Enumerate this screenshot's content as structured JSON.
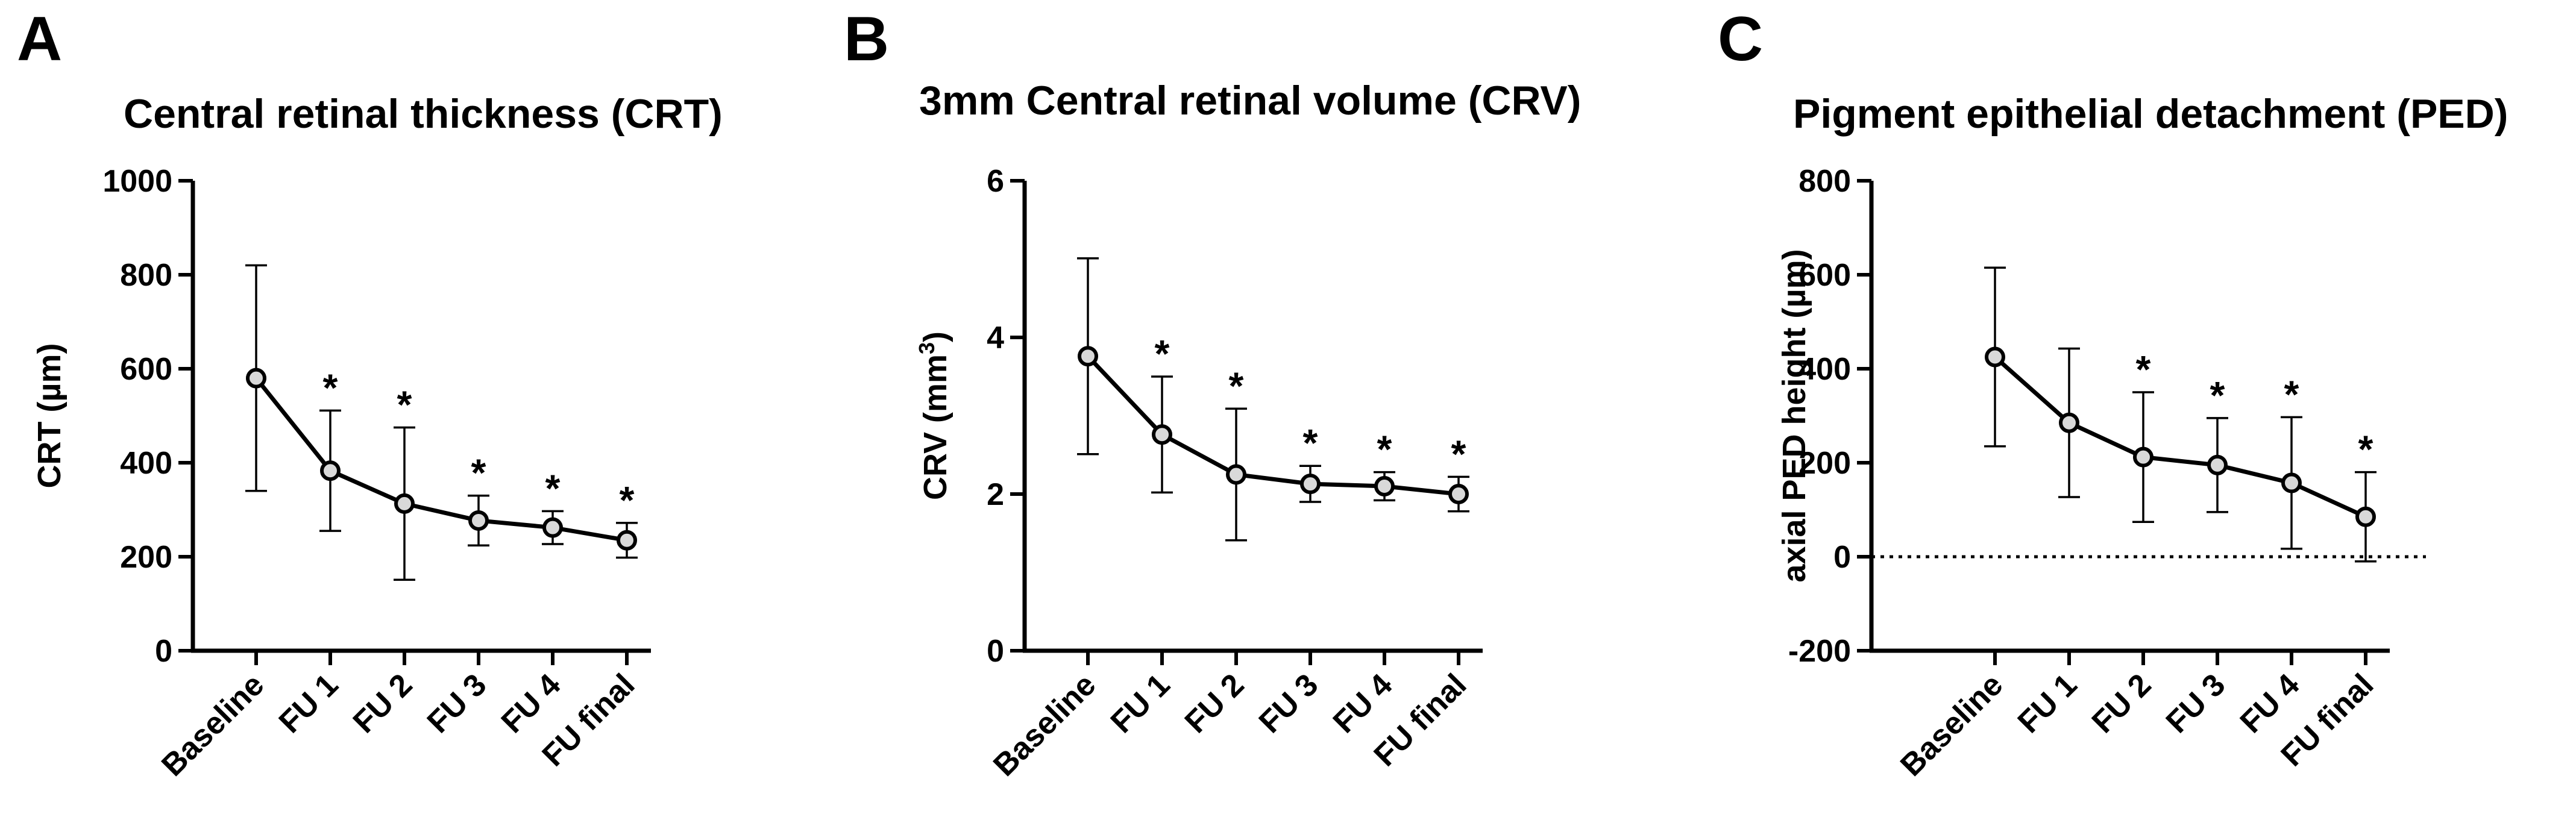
{
  "chart_data": [
    {
      "type": "line",
      "panel_label": "A",
      "title": "Central retinal thickness (CRT)",
      "ylabel_html_parts": [
        "CRT (µm)"
      ],
      "ylabel": "CRT (µm)",
      "ylim": [
        0,
        1000
      ],
      "yticks": [
        0,
        200,
        400,
        600,
        800,
        1000
      ],
      "grid": false,
      "categories": [
        "Baseline",
        "FU 1",
        "FU 2",
        "FU 3",
        "FU 4",
        "FU final"
      ],
      "values": [
        580,
        383,
        313,
        277,
        262,
        235
      ],
      "error_bars": [
        240,
        128,
        162,
        53,
        35,
        37
      ],
      "significance": [
        "",
        "*",
        "*",
        "*",
        "*",
        "*"
      ],
      "zero_reference_line": false
    },
    {
      "type": "line",
      "panel_label": "B",
      "title": "3mm Central retinal volume (CRV)",
      "ylabel": "CRV (mm3)",
      "ylabel_base": "CRV (mm",
      "ylabel_sup": "3",
      "ylabel_tail": ")",
      "ylim": [
        0,
        6
      ],
      "yticks": [
        0,
        2,
        4,
        6
      ],
      "grid": false,
      "categories": [
        "Baseline",
        "FU 1",
        "FU 2",
        "FU 3",
        "FU 4",
        "FU final"
      ],
      "values": [
        3.76,
        2.76,
        2.25,
        2.13,
        2.1,
        2.0
      ],
      "error_bars": [
        1.25,
        0.74,
        0.84,
        0.23,
        0.18,
        0.22
      ],
      "significance": [
        "",
        "*",
        "*",
        "*",
        "*",
        "*"
      ],
      "zero_reference_line": false
    },
    {
      "type": "line",
      "panel_label": "C",
      "title": "Pigment epithelial detachment (PED)",
      "ylabel": "axial PED height (µm)",
      "ylim": [
        -200,
        800
      ],
      "yticks": [
        -200,
        0,
        200,
        400,
        600,
        800
      ],
      "grid": false,
      "categories": [
        "Baseline",
        "FU 1",
        "FU 2",
        "FU 3",
        "FU 4",
        "FU final"
      ],
      "values": [
        425,
        285,
        212,
        195,
        157,
        85
      ],
      "error_bars": [
        190,
        158,
        138,
        100,
        140,
        95
      ],
      "significance": [
        "",
        "",
        "*",
        "*",
        "*",
        "*"
      ],
      "zero_reference_line": true
    }
  ]
}
